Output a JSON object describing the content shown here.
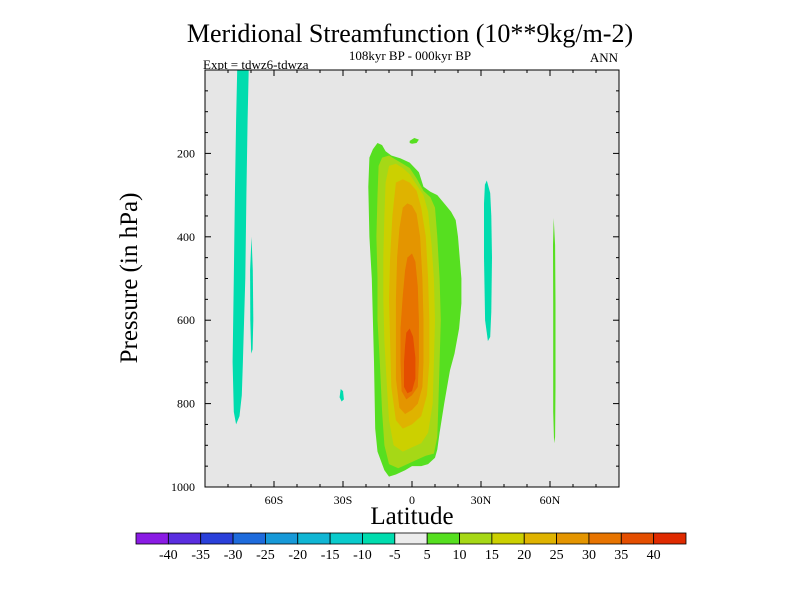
{
  "chart_data": {
    "type": "contour",
    "title": "Meridional Streamfunction (10**9kg/m-2)",
    "subtitle_center": "108kyr BP - 000kyr BP",
    "subtitle_left": "Expt = tdwz6-tdwza",
    "subtitle_right": "ANN",
    "xlabel": "Latitude",
    "ylabel": "Pressure (in hPa)",
    "xlim": [
      -90,
      90
    ],
    "ylim": [
      0,
      1000
    ],
    "y_inverted": true,
    "x_ticks": [
      {
        "value": -60,
        "label": "60S"
      },
      {
        "value": -30,
        "label": "30S"
      },
      {
        "value": 0,
        "label": "0"
      },
      {
        "value": 30,
        "label": "30N"
      },
      {
        "value": 60,
        "label": "60N"
      }
    ],
    "y_ticks": [
      {
        "value": 200,
        "label": "200"
      },
      {
        "value": 400,
        "label": "400"
      },
      {
        "value": 600,
        "label": "600"
      },
      {
        "value": 800,
        "label": "800"
      },
      {
        "value": 1000,
        "label": "1000"
      }
    ],
    "background_color": "#e6e6e6",
    "colorbar": {
      "levels": [
        "-40",
        "-35",
        "-30",
        "-25",
        "-20",
        "-15",
        "-10",
        "-5",
        "5",
        "10",
        "15",
        "20",
        "25",
        "30",
        "35",
        "40"
      ],
      "colors": [
        "#8a1be4",
        "#5a2ee0",
        "#2a40da",
        "#1e6bdc",
        "#1799d8",
        "#10b6d4",
        "#0acbcc",
        "#00dcae",
        "#ececec",
        "#56df20",
        "#a6d816",
        "#ccd000",
        "#dfb300",
        "#e49500",
        "#e77400",
        "#e44e00",
        "#df2a00"
      ]
    },
    "regions": [
      {
        "name": "SH band near 78S",
        "level_index": 7,
        "poly": [
          [
            -76,
            0
          ],
          [
            -71,
            0
          ],
          [
            -71.5,
            120
          ],
          [
            -72,
            300
          ],
          [
            -72.5,
            500
          ],
          [
            -73.5,
            700
          ],
          [
            -74,
            780
          ],
          [
            -75,
            830
          ],
          [
            -76.5,
            850
          ],
          [
            -77.5,
            820
          ],
          [
            -78,
            700
          ],
          [
            -77.5,
            500
          ],
          [
            -77,
            300
          ],
          [
            -76.5,
            120
          ]
        ]
      },
      {
        "name": "SH streak near 70S",
        "level_index": 7,
        "poly": [
          [
            -69.8,
            400
          ],
          [
            -69.2,
            480
          ],
          [
            -69,
            600
          ],
          [
            -69.3,
            670
          ],
          [
            -69.9,
            680
          ],
          [
            -70.3,
            600
          ],
          [
            -70.4,
            480
          ]
        ]
      },
      {
        "name": "blob near 30S",
        "level_index": 7,
        "poly": [
          [
            -31,
            765
          ],
          [
            -30,
            770
          ],
          [
            -29.6,
            790
          ],
          [
            -30.6,
            795
          ],
          [
            -31.5,
            785
          ]
        ]
      },
      {
        "name": "NH streak near 32N",
        "level_index": 7,
        "poly": [
          [
            32.5,
            265
          ],
          [
            34,
            295
          ],
          [
            34.5,
            350
          ],
          [
            34.8,
            450
          ],
          [
            34.5,
            580
          ],
          [
            34,
            640
          ],
          [
            33,
            650
          ],
          [
            31.8,
            600
          ],
          [
            31.3,
            450
          ],
          [
            31.3,
            320
          ],
          [
            31.7,
            275
          ]
        ]
      },
      {
        "name": "NH streak near 62N",
        "level_index": 9,
        "poly": [
          [
            61.6,
            355
          ],
          [
            62.2,
            420
          ],
          [
            62.4,
            560
          ],
          [
            62.4,
            760
          ],
          [
            62.2,
            880
          ],
          [
            61.8,
            895
          ],
          [
            61.4,
            820
          ],
          [
            61.4,
            560
          ],
          [
            61.3,
            420
          ]
        ]
      },
      {
        "name": "main cell outer",
        "level_index": 9,
        "poly": [
          [
            -17,
            190
          ],
          [
            -15,
            175
          ],
          [
            -13,
            180
          ],
          [
            -11.5,
            195
          ],
          [
            -9,
            205
          ],
          [
            -5,
            212
          ],
          [
            -1,
            222
          ],
          [
            3,
            245
          ],
          [
            5,
            280
          ],
          [
            8,
            292
          ],
          [
            11,
            300
          ],
          [
            14,
            320
          ],
          [
            17,
            340
          ],
          [
            19,
            360
          ],
          [
            20,
            400
          ],
          [
            21.5,
            500
          ],
          [
            21.5,
            560
          ],
          [
            20.5,
            620
          ],
          [
            18.5,
            680
          ],
          [
            16.5,
            720
          ],
          [
            14,
            800
          ],
          [
            12,
            870
          ],
          [
            11,
            910
          ],
          [
            10,
            930
          ],
          [
            7,
            945
          ],
          [
            4,
            950
          ],
          [
            0,
            950
          ],
          [
            -3,
            960
          ],
          [
            -7,
            970
          ],
          [
            -10,
            975
          ],
          [
            -12,
            960
          ],
          [
            -15,
            915
          ],
          [
            -16,
            860
          ],
          [
            -16.5,
            700
          ],
          [
            -17,
            600
          ],
          [
            -17.5,
            500
          ],
          [
            -18.5,
            400
          ],
          [
            -19,
            280
          ],
          [
            -18.5,
            210
          ]
        ]
      },
      {
        "name": "small blob 0-3N",
        "level_index": 9,
        "poly": [
          [
            -1,
            170
          ],
          [
            1,
            163
          ],
          [
            3,
            167
          ],
          [
            2,
            175
          ],
          [
            0,
            177
          ],
          [
            -1,
            175
          ]
        ]
      },
      {
        "name": "main cell level 10-15",
        "level_index": 10,
        "poly": [
          [
            -13,
            210
          ],
          [
            -10,
            205
          ],
          [
            -7,
            215
          ],
          [
            -4,
            225
          ],
          [
            -1,
            235
          ],
          [
            2,
            260
          ],
          [
            5,
            290
          ],
          [
            8,
            305
          ],
          [
            10,
            330
          ],
          [
            11,
            400
          ],
          [
            12,
            500
          ],
          [
            12.5,
            600
          ],
          [
            12,
            700
          ],
          [
            11.5,
            800
          ],
          [
            11,
            880
          ],
          [
            9.5,
            920
          ],
          [
            6,
            925
          ],
          [
            2,
            935
          ],
          [
            -2,
            945
          ],
          [
            -6,
            955
          ],
          [
            -10,
            945
          ],
          [
            -12,
            900
          ],
          [
            -13,
            820
          ],
          [
            -14,
            700
          ],
          [
            -15,
            600
          ],
          [
            -15,
            500
          ],
          [
            -15.5,
            400
          ],
          [
            -15,
            300
          ],
          [
            -14.5,
            230
          ]
        ]
      },
      {
        "name": "main cell level 15-20",
        "level_index": 11,
        "poly": [
          [
            -10,
            230
          ],
          [
            -7,
            225
          ],
          [
            -4,
            235
          ],
          [
            -1,
            250
          ],
          [
            2,
            275
          ],
          [
            5,
            300
          ],
          [
            7,
            340
          ],
          [
            8.5,
            420
          ],
          [
            9.5,
            500
          ],
          [
            10,
            600
          ],
          [
            9.5,
            700
          ],
          [
            9,
            800
          ],
          [
            7,
            870
          ],
          [
            4,
            895
          ],
          [
            0,
            905
          ],
          [
            -4,
            915
          ],
          [
            -8,
            900
          ],
          [
            -10,
            840
          ],
          [
            -11,
            750
          ],
          [
            -12,
            650
          ],
          [
            -12.5,
            550
          ],
          [
            -12.5,
            450
          ],
          [
            -12,
            350
          ],
          [
            -11.5,
            270
          ]
        ]
      },
      {
        "name": "main cell level 20-25",
        "level_index": 12,
        "poly": [
          [
            -7,
            270
          ],
          [
            -4,
            262
          ],
          [
            -1,
            270
          ],
          [
            2,
            290
          ],
          [
            4,
            330
          ],
          [
            6,
            400
          ],
          [
            7,
            500
          ],
          [
            7.5,
            600
          ],
          [
            7.5,
            700
          ],
          [
            6.5,
            780
          ],
          [
            4,
            830
          ],
          [
            0,
            850
          ],
          [
            -4,
            860
          ],
          [
            -7,
            840
          ],
          [
            -9,
            760
          ],
          [
            -9.5,
            650
          ],
          [
            -10,
            550
          ],
          [
            -9.5,
            450
          ],
          [
            -8.5,
            350
          ]
        ]
      },
      {
        "name": "main cell level 25-30",
        "level_index": 13,
        "poly": [
          [
            -4,
            330
          ],
          [
            -2,
            320
          ],
          [
            0,
            325
          ],
          [
            2,
            345
          ],
          [
            3.5,
            400
          ],
          [
            4.5,
            500
          ],
          [
            5,
            600
          ],
          [
            5,
            700
          ],
          [
            4.5,
            760
          ],
          [
            2.5,
            800
          ],
          [
            0,
            815
          ],
          [
            -3,
            825
          ],
          [
            -5.5,
            810
          ],
          [
            -7,
            740
          ],
          [
            -7,
            650
          ],
          [
            -7,
            550
          ],
          [
            -6.5,
            450
          ],
          [
            -5.5,
            380
          ]
        ]
      },
      {
        "name": "main cell level 30-35",
        "level_index": 14,
        "poly": [
          [
            -2,
            450
          ],
          [
            0,
            440
          ],
          [
            1.5,
            460
          ],
          [
            2.5,
            520
          ],
          [
            3,
            600
          ],
          [
            3,
            700
          ],
          [
            2.5,
            760
          ],
          [
            0,
            780
          ],
          [
            -2.5,
            790
          ],
          [
            -4.5,
            770
          ],
          [
            -5,
            700
          ],
          [
            -5,
            620
          ],
          [
            -4,
            540
          ],
          [
            -3,
            480
          ]
        ]
      },
      {
        "name": "main cell core",
        "level_index": 15,
        "poly": [
          [
            -2.5,
            630
          ],
          [
            -1,
            620
          ],
          [
            0.5,
            640
          ],
          [
            1.5,
            690
          ],
          [
            1.5,
            740
          ],
          [
            0,
            770
          ],
          [
            -2,
            775
          ],
          [
            -3.5,
            760
          ],
          [
            -3.5,
            700
          ],
          [
            -3,
            660
          ]
        ]
      }
    ]
  }
}
